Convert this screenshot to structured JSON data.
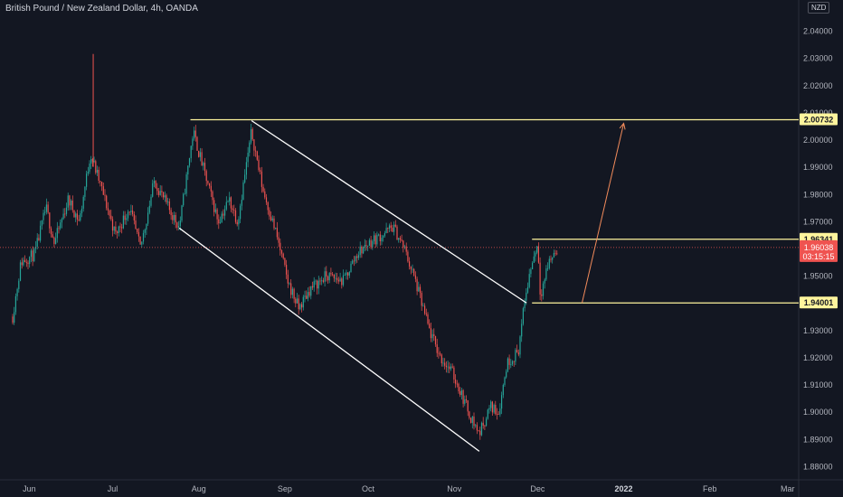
{
  "header": {
    "symbol_title": "British Pound / New Zealand Dollar, 4h, OANDA",
    "currency": "NZD"
  },
  "colors": {
    "background": "#131722",
    "up": "#26a69a",
    "down": "#ef5350",
    "drawing": "#ffffff",
    "level_line": "#fff59d",
    "projection_arrow": "#f28b5b",
    "axis_text": "#b2b5be",
    "current_price": "#ef5350"
  },
  "chart_data": {
    "type": "candlestick",
    "x_tick_labels": [
      "Jun",
      "Jul",
      "Aug",
      "Sep",
      "Oct",
      "Nov",
      "Dec",
      "2022",
      "Feb",
      "Mar"
    ],
    "y_tick_labels": [
      "1.88000",
      "1.89000",
      "1.90000",
      "1.91000",
      "1.92000",
      "1.93000",
      "1.94000",
      "1.95000",
      "1.96000",
      "1.97000",
      "1.98000",
      "1.99000",
      "2.00000",
      "2.01000",
      "2.02000",
      "2.03000",
      "2.04000"
    ],
    "ylim": [
      1.875,
      2.05
    ],
    "price_path": [
      [
        "2021-05-26",
        1.935
      ],
      [
        "2021-05-29",
        1.955
      ],
      [
        "2021-06-03",
        1.958
      ],
      [
        "2021-06-07",
        1.975
      ],
      [
        "2021-06-10",
        1.962
      ],
      [
        "2021-06-15",
        1.978
      ],
      [
        "2021-06-19",
        1.97
      ],
      [
        "2021-06-23",
        1.995
      ],
      [
        "2021-06-27",
        1.982
      ],
      [
        "2021-07-02",
        1.965
      ],
      [
        "2021-07-07",
        1.975
      ],
      [
        "2021-07-11",
        1.96
      ],
      [
        "2021-07-16",
        1.985
      ],
      [
        "2021-07-21",
        1.975
      ],
      [
        "2021-07-25",
        1.968
      ],
      [
        "2021-07-30",
        2.003
      ],
      [
        "2021-08-03",
        1.988
      ],
      [
        "2021-08-08",
        1.97
      ],
      [
        "2021-08-12",
        1.978
      ],
      [
        "2021-08-15",
        1.97
      ],
      [
        "2021-08-20",
        2.003
      ],
      [
        "2021-08-24",
        1.982
      ],
      [
        "2021-08-29",
        1.965
      ],
      [
        "2021-09-02",
        1.948
      ],
      [
        "2021-09-06",
        1.938
      ],
      [
        "2021-09-10",
        1.945
      ],
      [
        "2021-09-16",
        1.95
      ],
      [
        "2021-09-22",
        1.948
      ],
      [
        "2021-09-27",
        1.958
      ],
      [
        "2021-10-01",
        1.962
      ],
      [
        "2021-10-06",
        1.965
      ],
      [
        "2021-10-10",
        1.968
      ],
      [
        "2021-10-14",
        1.96
      ],
      [
        "2021-10-18",
        1.948
      ],
      [
        "2021-10-23",
        1.93
      ],
      [
        "2021-10-27",
        1.92
      ],
      [
        "2021-10-31",
        1.915
      ],
      [
        "2021-11-03",
        1.908
      ],
      [
        "2021-11-07",
        1.898
      ],
      [
        "2021-11-10",
        1.892
      ],
      [
        "2021-11-14",
        1.902
      ],
      [
        "2021-11-17",
        1.9
      ],
      [
        "2021-11-20",
        1.918
      ],
      [
        "2021-11-24",
        1.922
      ],
      [
        "2021-11-27",
        1.945
      ],
      [
        "2021-11-29",
        1.955
      ],
      [
        "2021-12-01",
        1.962
      ],
      [
        "2021-12-02",
        1.943
      ],
      [
        "2021-12-05",
        1.955
      ],
      [
        "2021-12-08",
        1.96
      ]
    ],
    "spike": {
      "date": "2021-06-24",
      "high": 2.0315
    },
    "levels": [
      {
        "label": "2.00732",
        "value": 2.00732,
        "from": "2021-07-29",
        "color": "#fff59d"
      },
      {
        "label": "1.96341",
        "value": 1.96341,
        "from": "2021-11-29",
        "color": "#fff59d"
      },
      {
        "label": "1.94001",
        "value": 1.94001,
        "from": "2021-11-29",
        "color": "#fff59d"
      }
    ],
    "current_price": {
      "label": "1.96038",
      "value": 1.96038,
      "countdown": "03:15:15"
    },
    "channel": {
      "upper": [
        [
          "2021-08-20",
          2.007
        ],
        [
          "2021-11-27",
          1.94
        ]
      ],
      "lower": [
        [
          "2021-07-25",
          1.9675
        ],
        [
          "2021-11-10",
          1.8855
        ]
      ]
    },
    "projection_arrow": {
      "from": [
        "2021-12-17",
        1.94
      ],
      "to": [
        "2022-01-01",
        2.006
      ]
    }
  }
}
